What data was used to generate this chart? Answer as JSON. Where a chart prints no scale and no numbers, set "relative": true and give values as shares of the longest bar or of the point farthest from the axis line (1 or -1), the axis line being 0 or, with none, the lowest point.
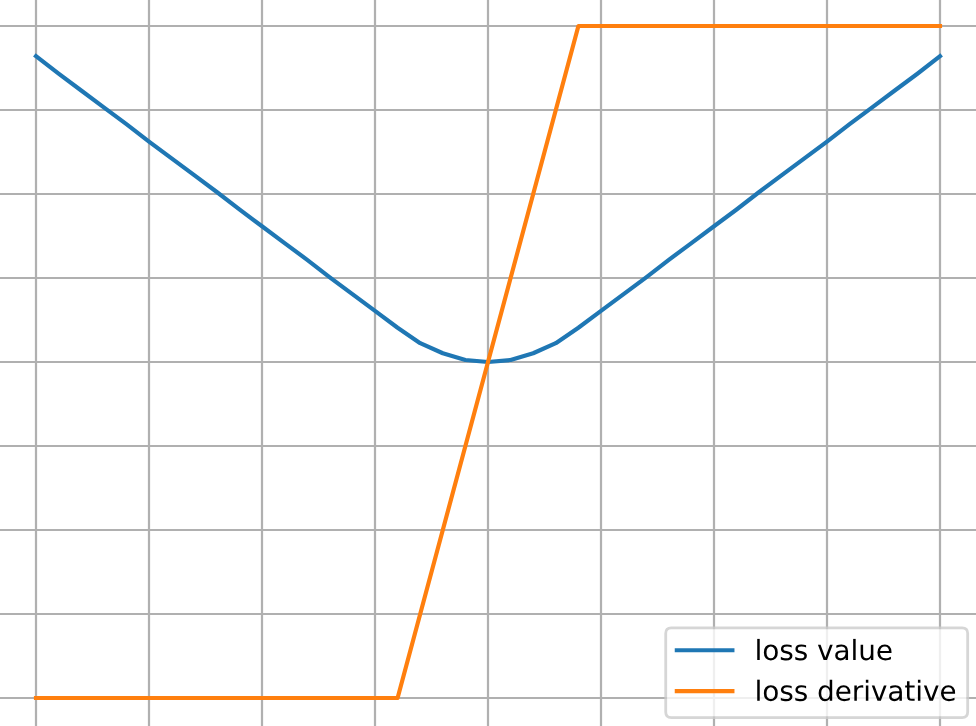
{
  "chart_data": {
    "type": "line",
    "relative": true,
    "categories": [
      null,
      null,
      null,
      null,
      null,
      null,
      null,
      null,
      null,
      null,
      null,
      null,
      null,
      null,
      null,
      null,
      null,
      null,
      null,
      null,
      null,
      null,
      null,
      null,
      null,
      null,
      null,
      null,
      null,
      null,
      null,
      null,
      null,
      null,
      null,
      null,
      null,
      null,
      null,
      null,
      null
    ],
    "series": [
      {
        "name": "loss value",
        "color": "#1f77b4",
        "values": [
          0.955,
          0.929,
          0.904,
          0.879,
          0.854,
          0.828,
          0.803,
          0.778,
          0.753,
          0.727,
          0.702,
          0.677,
          0.652,
          0.626,
          0.601,
          0.576,
          0.551,
          0.528,
          0.513,
          0.503,
          0.5,
          0.503,
          0.513,
          0.528,
          0.551,
          0.576,
          0.601,
          0.626,
          0.652,
          0.677,
          0.702,
          0.727,
          0.753,
          0.778,
          0.803,
          0.828,
          0.854,
          0.879,
          0.904,
          0.929,
          0.955
        ]
      },
      {
        "name": "loss derivative",
        "color": "#ff7f0e",
        "values": [
          0,
          0,
          0,
          0,
          0,
          0,
          0,
          0,
          0,
          0,
          0,
          0,
          0,
          0,
          0,
          0,
          0,
          0.125,
          0.25,
          0.375,
          0.5,
          0.625,
          0.75,
          0.875,
          1,
          1,
          1,
          1,
          1,
          1,
          1,
          1,
          1,
          1,
          1,
          1,
          1,
          1,
          1,
          1,
          1
        ]
      }
    ],
    "grid": true,
    "legend": "bottom right"
  }
}
